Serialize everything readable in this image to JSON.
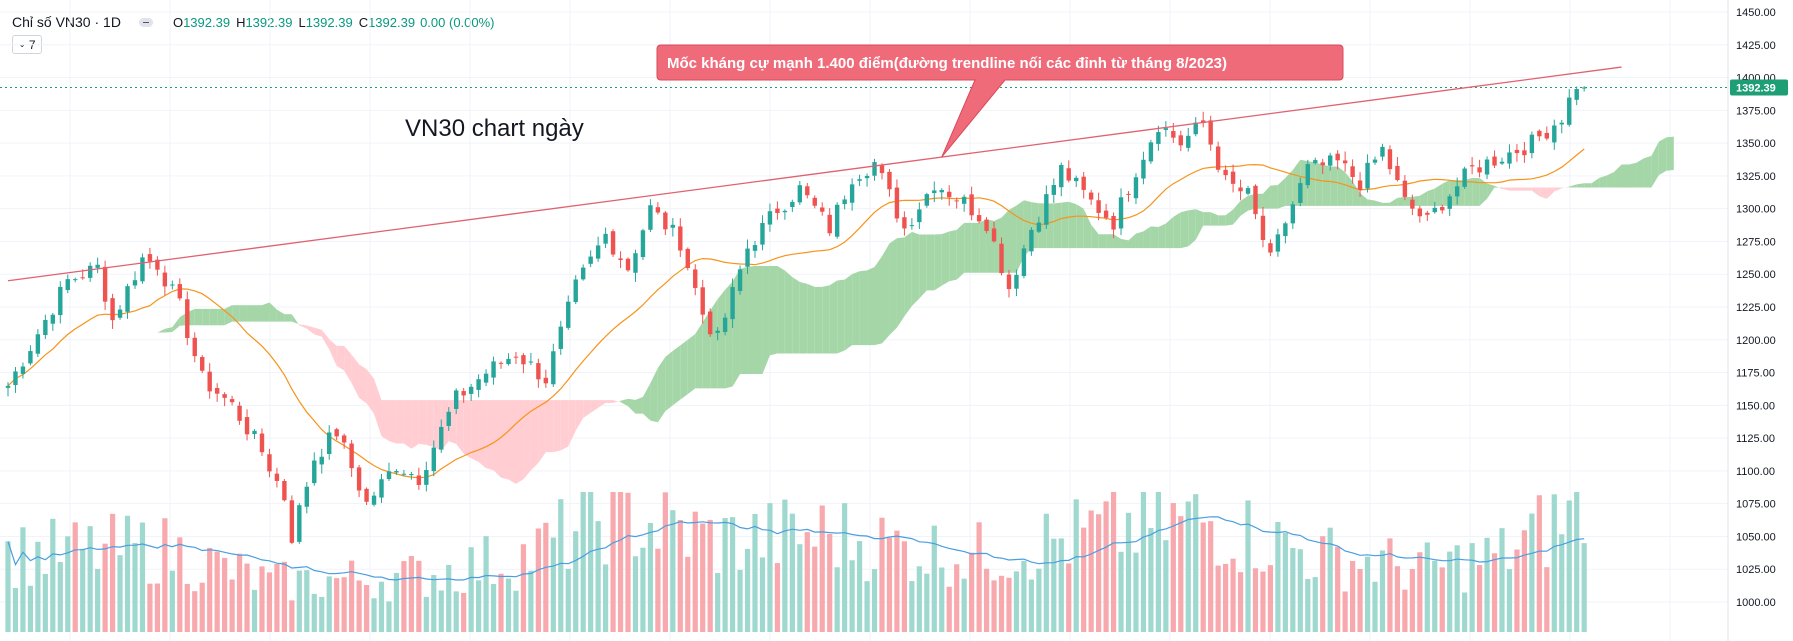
{
  "header": {
    "symbol": "Chỉ số VN30 · 1D",
    "o_label": "O",
    "o": "1392.39",
    "h_label": "H",
    "h": "1392.39",
    "l_label": "L",
    "l": "1392.39",
    "c_label": "C",
    "c": "1392.39",
    "change": "0.00 (0.00%)",
    "collapse_count": "7"
  },
  "colors": {
    "up": "#26a69a",
    "down": "#ef5350",
    "cloud_bull": "#a5d6a7",
    "cloud_bear": "#ffcdd2",
    "ma": "#f7931a",
    "volume_ma": "#4a9ee0",
    "trendline": "#e0616f",
    "callout": "#ef6b7a",
    "price_tag": "#1e9e74"
  },
  "chart_data": {
    "type": "candlestick",
    "title": "VN30 chart ngày",
    "annotation": "Mốc kháng cự mạnh 1.400 điểm(đường trendline nối các đỉnh từ tháng 8/2023)",
    "last_price": "1392.39",
    "y_ticks": [
      "1450.00",
      "1425.00",
      "1400.00",
      "1375.00",
      "1350.00",
      "1325.00",
      "1300.00",
      "1275.00",
      "1250.00",
      "1225.00",
      "1200.00",
      "1175.00",
      "1150.00",
      "1125.00",
      "1100.00",
      "1075.00",
      "1050.00",
      "1025.00",
      "1000.00"
    ],
    "ylim": [
      985,
      1455
    ],
    "trendline": {
      "start": [
        0,
        1245
      ],
      "end": [
        216,
        1408
      ]
    },
    "anchors": [
      [
        0,
        1165
      ],
      [
        4,
        1205
      ],
      [
        8,
        1245
      ],
      [
        12,
        1255
      ],
      [
        14,
        1215
      ],
      [
        18,
        1262
      ],
      [
        20,
        1258
      ],
      [
        23,
        1225
      ],
      [
        26,
        1170
      ],
      [
        30,
        1150
      ],
      [
        34,
        1115
      ],
      [
        37,
        1080
      ],
      [
        38,
        1050
      ],
      [
        41,
        1110
      ],
      [
        44,
        1130
      ],
      [
        48,
        1075
      ],
      [
        52,
        1105
      ],
      [
        55,
        1095
      ],
      [
        60,
        1155
      ],
      [
        64,
        1175
      ],
      [
        68,
        1190
      ],
      [
        72,
        1170
      ],
      [
        76,
        1240
      ],
      [
        80,
        1280
      ],
      [
        83,
        1255
      ],
      [
        86,
        1300
      ],
      [
        90,
        1275
      ],
      [
        93,
        1220
      ],
      [
        95,
        1200
      ],
      [
        99,
        1270
      ],
      [
        103,
        1300
      ],
      [
        106,
        1315
      ],
      [
        110,
        1285
      ],
      [
        113,
        1325
      ],
      [
        116,
        1335
      ],
      [
        120,
        1285
      ],
      [
        124,
        1320
      ],
      [
        128,
        1305
      ],
      [
        131,
        1290
      ],
      [
        134,
        1240
      ],
      [
        137,
        1285
      ],
      [
        141,
        1330
      ],
      [
        145,
        1305
      ],
      [
        148,
        1290
      ],
      [
        151,
        1330
      ],
      [
        154,
        1365
      ],
      [
        157,
        1350
      ],
      [
        160,
        1365
      ],
      [
        163,
        1320
      ],
      [
        166,
        1310
      ],
      [
        169,
        1260
      ],
      [
        171,
        1290
      ],
      [
        174,
        1330
      ],
      [
        178,
        1335
      ],
      [
        181,
        1320
      ],
      [
        184,
        1345
      ],
      [
        187,
        1305
      ],
      [
        190,
        1290
      ],
      [
        192,
        1305
      ],
      [
        196,
        1330
      ],
      [
        200,
        1340
      ],
      [
        204,
        1350
      ],
      [
        208,
        1370
      ],
      [
        210,
        1395
      ],
      [
        211,
        1392.39
      ]
    ],
    "volume_anchors": [
      [
        0,
        0.55
      ],
      [
        20,
        0.6
      ],
      [
        35,
        0.35
      ],
      [
        55,
        0.4
      ],
      [
        70,
        0.55
      ],
      [
        80,
        0.85
      ],
      [
        95,
        0.65
      ],
      [
        110,
        0.7
      ],
      [
        120,
        0.6
      ],
      [
        130,
        0.55
      ],
      [
        150,
        0.75
      ],
      [
        160,
        0.8
      ],
      [
        175,
        0.55
      ],
      [
        190,
        0.45
      ],
      [
        200,
        0.55
      ],
      [
        211,
        0.9
      ]
    ],
    "grid": true,
    "legend": "none"
  }
}
